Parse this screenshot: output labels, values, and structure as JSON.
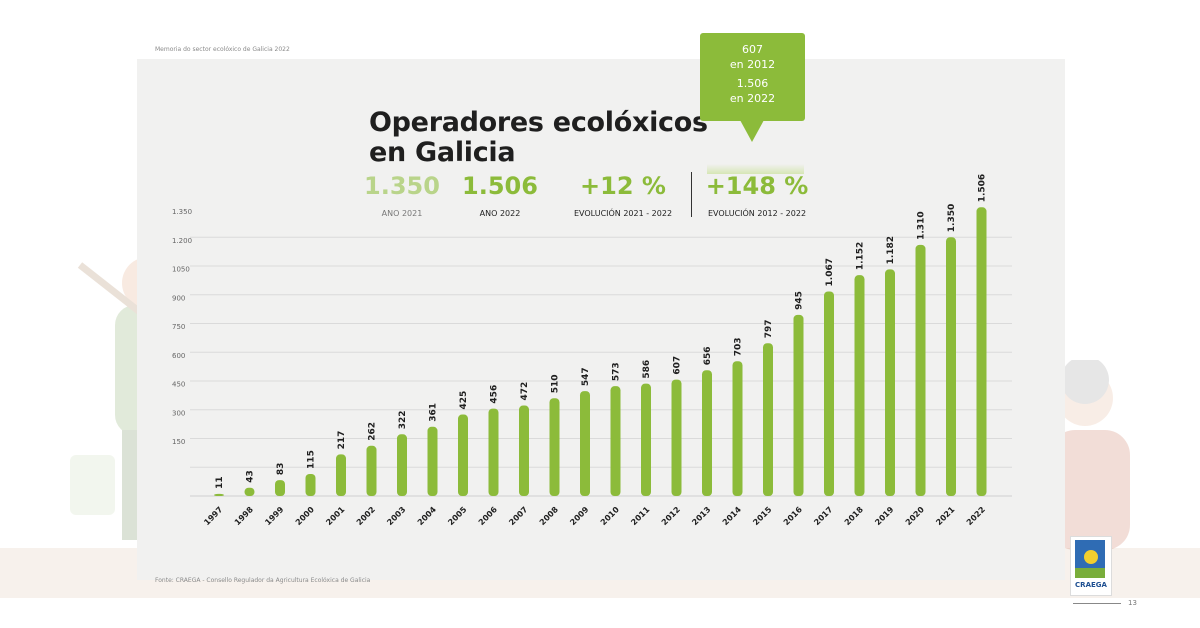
{
  "header_note": "Memoria do sector ecolóxico de Galicia 2022",
  "title_line1": "Operadores ecolóxicos",
  "title_line2": "en Galicia",
  "kpis": [
    {
      "value": "1.350",
      "label": "ANO 2021"
    },
    {
      "value": "1.506",
      "label": "ANO 2022"
    },
    {
      "value": "+12 %",
      "label": "EVOLUCIÓN 2021 - 2022"
    },
    {
      "value": "+148 %",
      "label": "EVOLUCIÓN 2012 - 2022"
    }
  ],
  "callout": {
    "line1": "607",
    "line2": "en 2012",
    "line3": "1.506",
    "line4": "en 2022"
  },
  "source": "Fonte: CRAEGA - Consello Regulador da Agricultura Ecolóxica de Galicia",
  "logo_text": "CRAEGA",
  "page_number": "13",
  "colors": {
    "accent_green": "#8cbb3a",
    "muted_green": "#b9d48a",
    "panel_bg": "#f1f1f0"
  },
  "chart_data": {
    "type": "bar",
    "categories": [
      "1997",
      "1998",
      "1999",
      "2000",
      "2001",
      "2002",
      "2003",
      "2004",
      "2005",
      "2006",
      "2007",
      "2008",
      "2009",
      "2010",
      "2011",
      "2012",
      "2013",
      "2014",
      "2015",
      "2016",
      "2017",
      "2018",
      "2019",
      "2020",
      "2021",
      "2022"
    ],
    "values": [
      11,
      43,
      83,
      115,
      217,
      262,
      322,
      361,
      425,
      456,
      472,
      510,
      547,
      573,
      586,
      607,
      656,
      703,
      797,
      945,
      1067,
      1152,
      1182,
      1310,
      1350,
      1506
    ],
    "data_labels": [
      "11",
      "43",
      "83",
      "115",
      "217",
      "262",
      "322",
      "361",
      "425",
      "456",
      "472",
      "510",
      "547",
      "573",
      "586",
      "607",
      "656",
      "703",
      "797",
      "945",
      "1.067",
      "1.152",
      "1.182",
      "1.310",
      "1.350",
      "1.506"
    ],
    "y_ticks": [
      150,
      300,
      450,
      600,
      750,
      900,
      1050,
      1200,
      1350
    ],
    "y_tick_labels": [
      "150",
      "300",
      "450",
      "600",
      "750",
      "900",
      "1050",
      "1.200",
      "1.350"
    ],
    "ylim": [
      0,
      1506
    ],
    "grid": true
  }
}
